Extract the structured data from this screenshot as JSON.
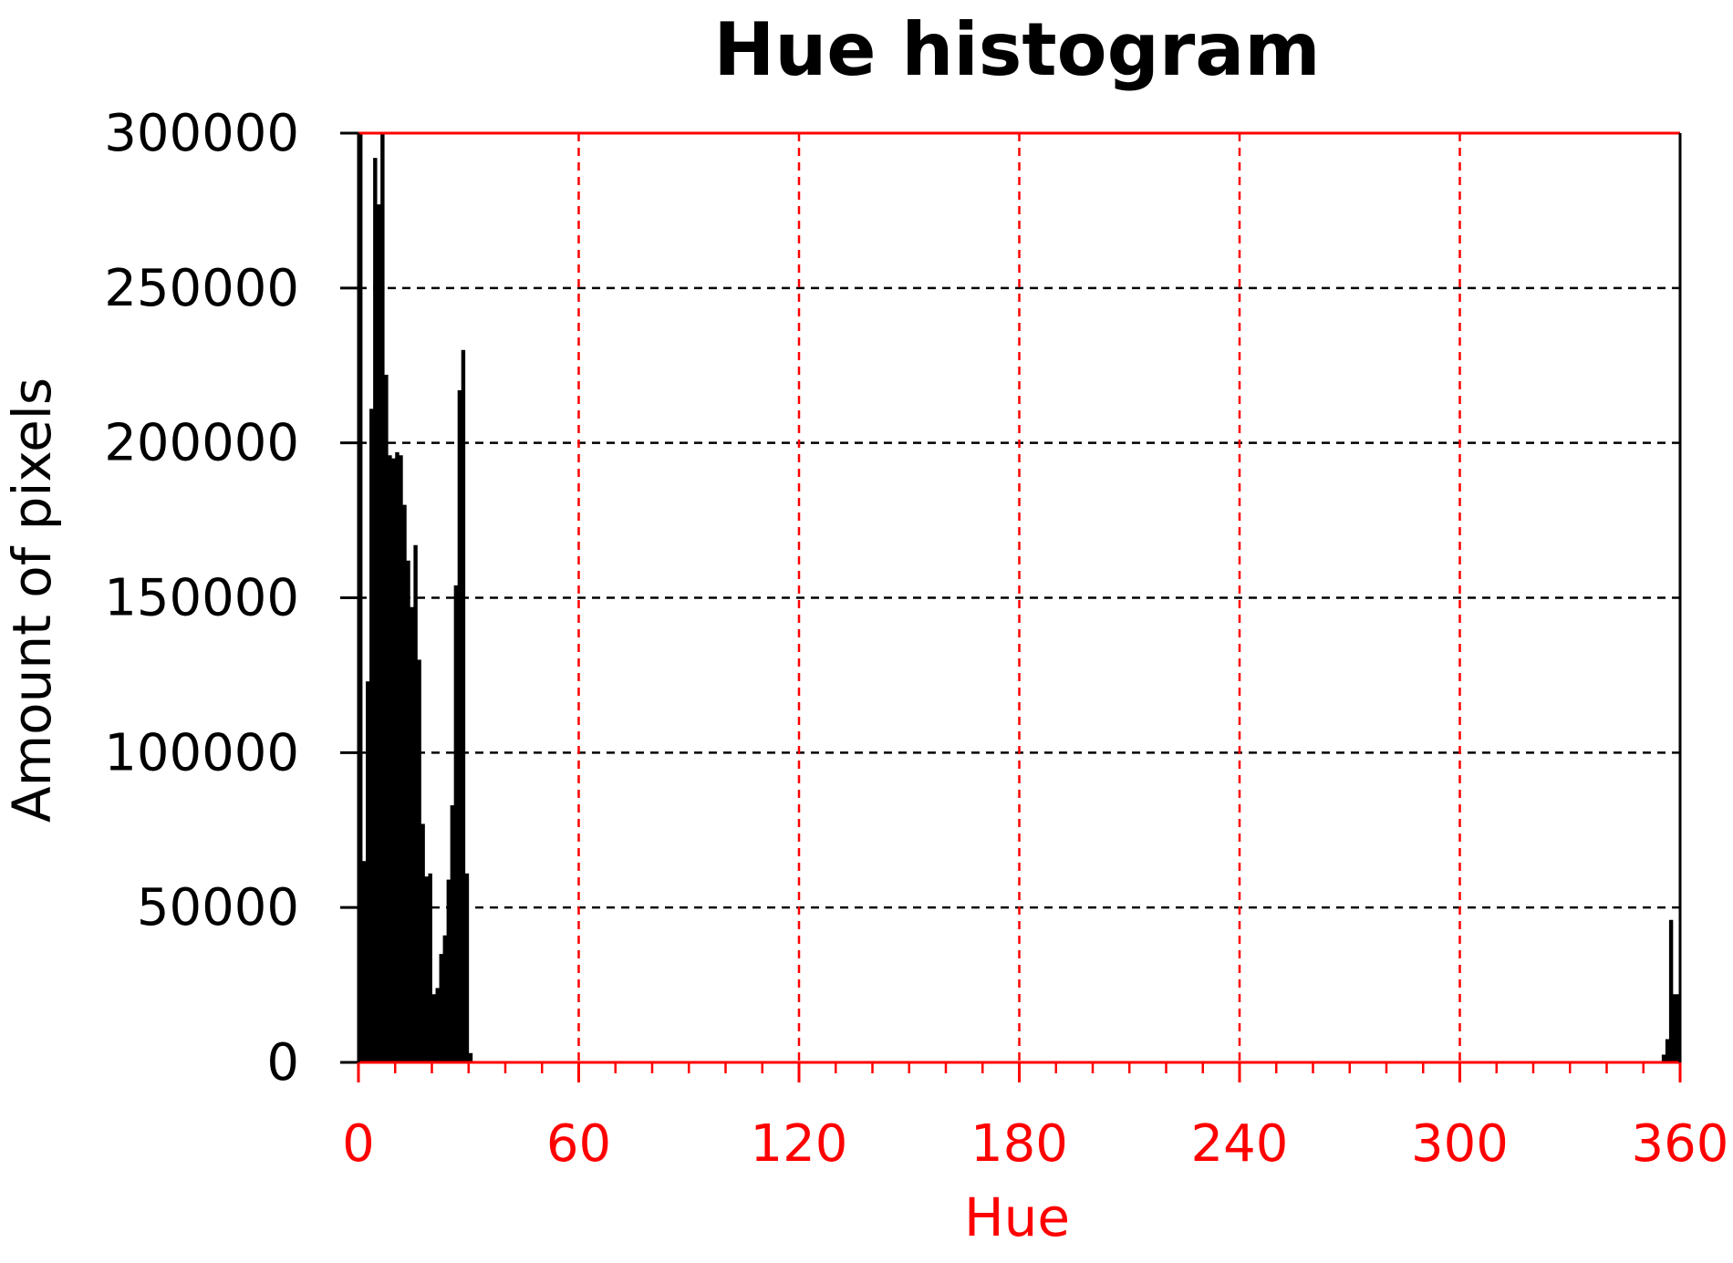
{
  "chart_data": {
    "type": "bar",
    "title": "Hue histogram",
    "xlabel": "Hue",
    "ylabel": "Amount of pixels",
    "xlim": [
      0,
      360
    ],
    "ylim": [
      0,
      300000
    ],
    "xticks": [
      0,
      60,
      120,
      180,
      240,
      300,
      360
    ],
    "xtick_labels": [
      "0",
      "60",
      "120",
      "180",
      "240",
      "300",
      "360"
    ],
    "yticks": [
      0,
      50000,
      100000,
      150000,
      200000,
      250000,
      300000
    ],
    "ytick_labels": [
      "0",
      "50000",
      "100000",
      "150000",
      "200000",
      "250000",
      "300000"
    ],
    "grid": true,
    "bar_color": "#000000",
    "x_axis_color": "#ff0000",
    "y_axis_color": "#000000",
    "bin_width": 1,
    "bins": [
      {
        "x": 0,
        "value": 300000
      },
      {
        "x": 1,
        "value": 65000
      },
      {
        "x": 2,
        "value": 123000
      },
      {
        "x": 3,
        "value": 211000
      },
      {
        "x": 4,
        "value": 292000
      },
      {
        "x": 5,
        "value": 277000
      },
      {
        "x": 6,
        "value": 300000
      },
      {
        "x": 7,
        "value": 222000
      },
      {
        "x": 8,
        "value": 196000
      },
      {
        "x": 9,
        "value": 195000
      },
      {
        "x": 10,
        "value": 197000
      },
      {
        "x": 11,
        "value": 196000
      },
      {
        "x": 12,
        "value": 180000
      },
      {
        "x": 13,
        "value": 162000
      },
      {
        "x": 14,
        "value": 147000
      },
      {
        "x": 15,
        "value": 167000
      },
      {
        "x": 16,
        "value": 130000
      },
      {
        "x": 17,
        "value": 77000
      },
      {
        "x": 18,
        "value": 60000
      },
      {
        "x": 19,
        "value": 61000
      },
      {
        "x": 20,
        "value": 22000
      },
      {
        "x": 21,
        "value": 24000
      },
      {
        "x": 22,
        "value": 35000
      },
      {
        "x": 23,
        "value": 41000
      },
      {
        "x": 24,
        "value": 59000
      },
      {
        "x": 25,
        "value": 83000
      },
      {
        "x": 26,
        "value": 154000
      },
      {
        "x": 27,
        "value": 217000
      },
      {
        "x": 28,
        "value": 230000
      },
      {
        "x": 29,
        "value": 61000
      },
      {
        "x": 30,
        "value": 3000
      },
      {
        "x": 355,
        "value": 2500
      },
      {
        "x": 356,
        "value": 7500
      },
      {
        "x": 357,
        "value": 46000
      },
      {
        "x": 358,
        "value": 22000
      },
      {
        "x": 359,
        "value": 22000
      }
    ]
  }
}
